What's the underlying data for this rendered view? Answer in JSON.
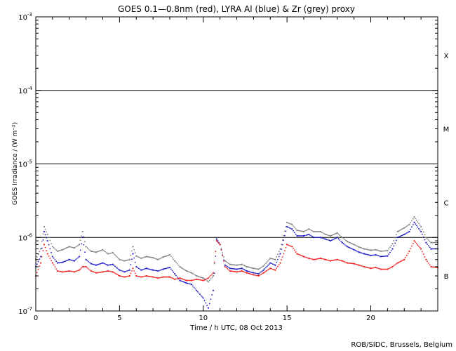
{
  "chart_data": {
    "type": "scatter",
    "title": "GOES 0.1—0.8nm (red), LYRA Al (blue) & Zr (grey) proxy",
    "xlabel": "Time / h UTC, 08 Oct 2013",
    "ylabel": "GOES Irradiance / (W m⁻²)",
    "credit": "ROB/SIDC, Brussels, Belgium",
    "xlim": [
      0,
      24
    ],
    "ylim": [
      1e-07,
      0.001
    ],
    "yscale": "log",
    "xticks": [
      {
        "value": 0,
        "label": "0"
      },
      {
        "value": 5,
        "label": "5"
      },
      {
        "value": 10,
        "label": "10"
      },
      {
        "value": 15,
        "label": "15"
      },
      {
        "value": 20,
        "label": "20"
      }
    ],
    "yticks": [
      {
        "value": 1e-07,
        "base": "10",
        "exp": "-7"
      },
      {
        "value": 1e-06,
        "base": "10",
        "exp": "-6"
      },
      {
        "value": 1e-05,
        "base": "10",
        "exp": "-5"
      },
      {
        "value": 0.0001,
        "base": "10",
        "exp": "-4"
      },
      {
        "value": 0.001,
        "base": "10",
        "exp": "-3"
      }
    ],
    "flare_class_lines": [
      1e-06,
      1e-05,
      0.0001
    ],
    "flare_classes": [
      {
        "label": "X",
        "value": 0.0003
      },
      {
        "label": "M",
        "value": 3e-05
      },
      {
        "label": "C",
        "value": 3e-06
      },
      {
        "label": "B",
        "value": 3e-07
      }
    ],
    "x": [
      0,
      0.3,
      0.5,
      0.7,
      1.0,
      1.3,
      1.6,
      2.0,
      2.3,
      2.6,
      2.8,
      3.0,
      3.3,
      3.6,
      4.0,
      4.3,
      4.6,
      5.0,
      5.3,
      5.6,
      5.8,
      6.0,
      6.3,
      6.6,
      7.0,
      7.3,
      7.6,
      8.0,
      8.3,
      8.6,
      9.0,
      9.3,
      9.6,
      10.0,
      10.3,
      10.6,
      10.8,
      11.0,
      11.3,
      11.6,
      12.0,
      12.3,
      12.6,
      13.0,
      13.3,
      13.6,
      14.0,
      14.3,
      14.6,
      15.0,
      15.3,
      15.6,
      16.0,
      16.3,
      16.6,
      17.0,
      17.3,
      17.6,
      18.0,
      18.3,
      18.6,
      19.0,
      19.3,
      19.6,
      20.0,
      20.3,
      20.6,
      21.0,
      21.3,
      21.6,
      22.0,
      22.3,
      22.6,
      23.0,
      23.3,
      23.6,
      24.0
    ],
    "series": [
      {
        "name": "red",
        "color": "#ee1c1c",
        "values": [
          3e-07,
          4.5e-07,
          8e-07,
          6e-07,
          4.5e-07,
          3.5e-07,
          3.4e-07,
          3.5e-07,
          3.4e-07,
          3.6e-07,
          4e-07,
          4e-07,
          3.5e-07,
          3.3e-07,
          3.4e-07,
          3.5e-07,
          3.4e-07,
          3e-07,
          2.9e-07,
          3e-07,
          3.8e-07,
          3e-07,
          2.9e-07,
          3e-07,
          2.9e-07,
          2.8e-07,
          2.9e-07,
          2.9e-07,
          2.7e-07,
          2.8e-07,
          2.6e-07,
          2.6e-07,
          2.7e-07,
          2.6e-07,
          2.8e-07,
          3.3e-07,
          9e-07,
          8e-07,
          4e-07,
          3.5e-07,
          3.4e-07,
          3.5e-07,
          3.3e-07,
          3.1e-07,
          3e-07,
          3.3e-07,
          3.8e-07,
          3.6e-07,
          4.5e-07,
          8e-07,
          7.5e-07,
          6e-07,
          5.5e-07,
          5.2e-07,
          5e-07,
          5.2e-07,
          5e-07,
          4.8e-07,
          5e-07,
          4.8e-07,
          4.5e-07,
          4.4e-07,
          4.2e-07,
          4e-07,
          3.8e-07,
          3.9e-07,
          3.7e-07,
          3.7e-07,
          4e-07,
          4.5e-07,
          5e-07,
          6.5e-07,
          9e-07,
          7e-07,
          5e-07,
          4e-07,
          3.9e-07
        ]
      },
      {
        "name": "blue",
        "color": "#1a1ac8",
        "values": [
          4e-07,
          5.5e-07,
          1.2e-06,
          9e-07,
          5.5e-07,
          4.5e-07,
          4.6e-07,
          5e-07,
          4.8e-07,
          5.5e-07,
          1e-06,
          5e-07,
          4.4e-07,
          4.2e-07,
          4.5e-07,
          4.2e-07,
          4.3e-07,
          3.6e-07,
          3.4e-07,
          3.6e-07,
          6e-07,
          4e-07,
          3.6e-07,
          3.8e-07,
          3.6e-07,
          3.5e-07,
          3.7e-07,
          3.9e-07,
          3.2e-07,
          2.6e-07,
          2.4e-07,
          2.3e-07,
          1.9e-07,
          1.5e-07,
          1.1e-07,
          1.9e-07,
          9.5e-07,
          8e-07,
          4.2e-07,
          3.8e-07,
          3.7e-07,
          3.8e-07,
          3.5e-07,
          3.3e-07,
          3.2e-07,
          3.6e-07,
          4.5e-07,
          4.2e-07,
          6e-07,
          1.4e-06,
          1.3e-06,
          1.05e-06,
          1.05e-06,
          1.1e-06,
          1e-06,
          1e-06,
          9.5e-07,
          9e-07,
          1e-06,
          8.5e-07,
          7.5e-07,
          6.8e-07,
          6.3e-07,
          6e-07,
          5.7e-07,
          5.8e-07,
          5.5e-07,
          5.6e-07,
          7e-07,
          1e-06,
          1.1e-06,
          1.2e-06,
          1.6e-06,
          1.2e-06,
          8.5e-07,
          7e-07,
          7e-07
        ]
      },
      {
        "name": "grey",
        "color": "#7f7f7f",
        "values": [
          5e-07,
          7e-07,
          1.4e-06,
          1.1e-06,
          7.5e-07,
          6.5e-07,
          6.8e-07,
          7.5e-07,
          7.2e-07,
          8e-07,
          1.2e-06,
          7.5e-07,
          6.5e-07,
          6.3e-07,
          6.8e-07,
          6e-07,
          6.2e-07,
          5e-07,
          4.8e-07,
          5e-07,
          7.5e-07,
          5.6e-07,
          5.2e-07,
          5.5e-07,
          5.3e-07,
          5e-07,
          5.4e-07,
          5.8e-07,
          4.8e-07,
          4e-07,
          3.5e-07,
          3.3e-07,
          3e-07,
          2.8e-07,
          2.5e-07,
          3e-07,
          9.5e-07,
          8e-07,
          4.8e-07,
          4.3e-07,
          4.2e-07,
          4.3e-07,
          4e-07,
          3.8e-07,
          3.7e-07,
          4.1e-07,
          5.2e-07,
          5e-07,
          7e-07,
          1.6e-06,
          1.5e-06,
          1.25e-06,
          1.2e-06,
          1.3e-06,
          1.2e-06,
          1.2e-06,
          1.1e-06,
          1.05e-06,
          1.15e-06,
          1e-06,
          8.8e-07,
          8e-07,
          7.4e-07,
          7e-07,
          6.7e-07,
          6.8e-07,
          6.5e-07,
          6.6e-07,
          8.2e-07,
          1.2e-06,
          1.35e-06,
          1.5e-06,
          1.9e-06,
          1.4e-06,
          1e-06,
          8.5e-07,
          8.5e-07
        ]
      }
    ]
  }
}
